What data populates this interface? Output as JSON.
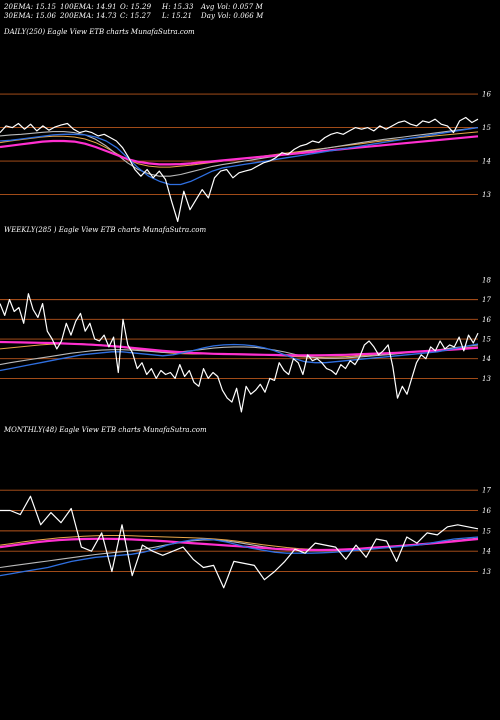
{
  "header": {
    "line1": [
      "20EMA: 15.15",
      "100EMA: 14.91",
      "O: 15.29",
      "H: 15.33",
      "Avg Vol: 0.057  M"
    ],
    "line2": [
      "30EMA: 15.06",
      "200EMA: 14.73",
      "C: 15.27",
      "L: 15.21",
      "Day Vol: 0.066  M"
    ]
  },
  "colors": {
    "background": "#000000",
    "price": "#ffffff",
    "gridline": "#b8561c",
    "ema_blue": "#2f6fe0",
    "ema_magenta": "#ff2fd0",
    "ema_grey": "#b9b9b9",
    "ema_orange": "#e8a64a"
  },
  "chart_data": [
    {
      "type": "line",
      "title": "DAILY(250) Eagle  View  ETB charts MunafaSutra.com",
      "y_ticks": [
        "16",
        "15",
        "14",
        "13"
      ],
      "gridlines": [
        16,
        15,
        14,
        13
      ],
      "ylim": [
        12.6,
        16.3
      ],
      "series": [
        {
          "key": "price",
          "color": "#ffffff",
          "values": [
            14.85,
            15.05,
            15.0,
            15.12,
            14.95,
            15.1,
            14.9,
            15.05,
            14.92,
            15.02,
            15.08,
            15.12,
            14.95,
            14.85,
            14.9,
            14.85,
            14.75,
            14.8,
            14.7,
            14.6,
            14.4,
            14.1,
            13.75,
            13.55,
            13.75,
            13.5,
            13.7,
            13.45,
            12.8,
            12.2,
            13.1,
            12.55,
            12.85,
            13.15,
            12.9,
            13.5,
            13.7,
            13.75,
            13.5,
            13.65,
            13.7,
            13.75,
            13.85,
            13.95,
            14.0,
            14.1,
            14.25,
            14.2,
            14.35,
            14.45,
            14.5,
            14.6,
            14.55,
            14.7,
            14.8,
            14.85,
            14.8,
            14.9,
            15.0,
            14.95,
            15.0,
            14.9,
            15.05,
            14.95,
            15.05,
            15.15,
            15.2,
            15.1,
            15.05,
            15.2,
            15.15,
            15.25,
            15.1,
            15.05,
            14.85,
            15.2,
            15.3,
            15.15,
            15.25
          ]
        },
        {
          "key": "ema_blue",
          "color": "#2f6fe0",
          "values": [
            14.6,
            14.62,
            14.66,
            14.7,
            14.74,
            14.78,
            14.8,
            14.8,
            14.78,
            14.72,
            14.6,
            14.4,
            14.1,
            13.8,
            13.55,
            13.4,
            13.3,
            13.3,
            13.4,
            13.55,
            13.7,
            13.8,
            13.85,
            13.9,
            13.95,
            14.0,
            14.05,
            14.1,
            14.15,
            14.2,
            14.25,
            14.3,
            14.35,
            14.4,
            14.45,
            14.5,
            14.55,
            14.6,
            14.65,
            14.7,
            14.75,
            14.8,
            14.85,
            14.9,
            14.95,
            15.0
          ]
        },
        {
          "key": "ema_grey",
          "color": "#b9b9b9",
          "values": [
            14.75,
            14.78,
            14.8,
            14.83,
            14.86,
            14.88,
            14.88,
            14.85,
            14.78,
            14.65,
            14.45,
            14.2,
            13.95,
            13.75,
            13.62,
            13.55,
            13.55,
            13.6,
            13.68,
            13.76,
            13.84,
            13.9,
            13.95,
            14.0,
            14.05,
            14.1,
            14.15,
            14.2,
            14.25,
            14.3,
            14.35,
            14.4,
            14.45,
            14.5,
            14.55,
            14.6,
            14.64,
            14.68,
            14.72,
            14.76,
            14.8,
            14.84,
            14.88,
            14.92,
            14.96,
            15.0
          ]
        },
        {
          "key": "ema_orange",
          "color": "#e8a64a",
          "values": [
            14.55,
            14.6,
            14.64,
            14.68,
            14.72,
            14.74,
            14.74,
            14.72,
            14.66,
            14.55,
            14.4,
            14.22,
            14.05,
            13.92,
            13.85,
            13.82,
            13.82,
            13.85,
            13.88,
            13.92,
            13.96,
            14.0,
            14.04,
            14.08,
            14.12,
            14.16,
            14.2,
            14.24,
            14.28,
            14.32,
            14.36,
            14.4,
            14.44,
            14.48,
            14.52,
            14.56,
            14.6,
            14.63,
            14.66,
            14.69,
            14.72,
            14.75,
            14.78,
            14.81,
            14.84,
            14.87
          ]
        },
        {
          "key": "ema_magenta",
          "color": "#ff2fd0",
          "values": [
            14.42,
            14.46,
            14.5,
            14.54,
            14.58,
            14.6,
            14.6,
            14.58,
            14.52,
            14.42,
            14.3,
            14.18,
            14.06,
            13.98,
            13.93,
            13.9,
            13.9,
            13.91,
            13.93,
            13.96,
            13.99,
            14.02,
            14.05,
            14.08,
            14.11,
            14.14,
            14.17,
            14.2,
            14.23,
            14.26,
            14.29,
            14.32,
            14.35,
            14.38,
            14.41,
            14.44,
            14.47,
            14.5,
            14.53,
            14.56,
            14.59,
            14.62,
            14.65,
            14.68,
            14.71,
            14.74
          ]
        }
      ]
    },
    {
      "type": "line",
      "title": "WEEKLY(285                   ) Eagle  View  ETB charts MunafaSutra.com",
      "y_ticks": [
        "18",
        "17",
        "16",
        "15",
        "14",
        "13"
      ],
      "gridlines": [
        17,
        16,
        15,
        14,
        13
      ],
      "ylim": [
        11.6,
        18.2
      ],
      "series": [
        {
          "key": "price",
          "color": "#ffffff",
          "values": [
            16.8,
            16.2,
            17.0,
            16.4,
            16.6,
            15.8,
            17.3,
            16.5,
            16.1,
            16.8,
            15.4,
            15.0,
            14.5,
            14.9,
            15.8,
            15.2,
            15.9,
            16.3,
            15.4,
            15.8,
            15.0,
            14.9,
            15.2,
            14.6,
            15.1,
            13.3,
            16.0,
            14.7,
            14.3,
            13.5,
            13.8,
            13.2,
            13.5,
            13.0,
            13.4,
            13.2,
            13.3,
            13.0,
            13.7,
            13.1,
            13.4,
            12.8,
            12.6,
            13.5,
            13.0,
            13.3,
            13.1,
            12.4,
            12.0,
            11.8,
            12.5,
            11.3,
            12.6,
            12.2,
            12.4,
            12.7,
            12.3,
            13.0,
            12.9,
            13.8,
            13.4,
            13.2,
            14.0,
            13.8,
            13.2,
            14.2,
            13.9,
            14.0,
            13.8,
            13.5,
            13.4,
            13.2,
            13.7,
            13.5,
            13.9,
            13.7,
            14.1,
            14.7,
            14.9,
            14.6,
            14.2,
            14.4,
            14.7,
            13.6,
            12.0,
            12.6,
            12.2,
            13.0,
            13.8,
            14.2,
            14.0,
            14.6,
            14.4,
            14.9,
            14.5,
            14.7,
            14.6,
            15.1,
            14.4,
            15.2,
            14.8,
            15.3
          ]
        },
        {
          "key": "ema_blue",
          "color": "#2f6fe0",
          "values": [
            13.4,
            13.5,
            13.6,
            13.7,
            13.8,
            13.9,
            14.0,
            14.1,
            14.2,
            14.25,
            14.3,
            14.35,
            14.35,
            14.3,
            14.25,
            14.2,
            14.15,
            14.2,
            14.3,
            14.42,
            14.55,
            14.65,
            14.7,
            14.72,
            14.7,
            14.65,
            14.55,
            14.4,
            14.2,
            14.0,
            13.85,
            13.8,
            13.8,
            13.85,
            13.9,
            13.95,
            14.0,
            14.05,
            14.1,
            14.15,
            14.2,
            14.25,
            14.3,
            14.35,
            14.45,
            14.55,
            14.65,
            14.75
          ]
        },
        {
          "key": "ema_grey",
          "color": "#b9b9b9",
          "values": [
            13.7,
            13.8,
            13.88,
            13.96,
            14.04,
            14.12,
            14.2,
            14.28,
            14.34,
            14.4,
            14.44,
            14.46,
            14.46,
            14.44,
            14.4,
            14.36,
            14.32,
            14.32,
            14.36,
            14.42,
            14.48,
            14.54,
            14.58,
            14.6,
            14.6,
            14.58,
            14.52,
            14.44,
            14.34,
            14.22,
            14.12,
            14.05,
            14.02,
            14.02,
            14.04,
            14.08,
            14.12,
            14.16,
            14.2,
            14.25,
            14.3,
            14.35,
            14.4,
            14.45,
            14.52,
            14.58,
            14.64,
            14.7
          ]
        },
        {
          "key": "ema_orange",
          "color": "#e8a64a",
          "values": [
            14.5,
            14.55,
            14.6,
            14.65,
            14.7,
            14.73,
            14.75,
            14.76,
            14.76,
            14.74,
            14.7,
            14.64,
            14.58,
            14.5,
            14.44,
            14.38,
            14.32,
            14.28,
            14.25,
            14.24,
            14.24,
            14.24,
            14.25,
            14.25,
            14.24,
            14.22,
            14.2,
            14.17,
            14.14,
            14.11,
            14.09,
            14.08,
            14.08,
            14.09,
            14.11,
            14.14,
            14.17,
            14.21,
            14.25,
            14.29,
            14.33,
            14.37,
            14.41,
            14.45,
            14.49,
            14.53,
            14.57,
            14.6
          ]
        },
        {
          "key": "ema_magenta",
          "color": "#ff2fd0",
          "values": [
            14.85,
            14.84,
            14.83,
            14.82,
            14.81,
            14.8,
            14.78,
            14.76,
            14.74,
            14.71,
            14.68,
            14.64,
            14.6,
            14.55,
            14.5,
            14.45,
            14.4,
            14.36,
            14.32,
            14.29,
            14.27,
            14.25,
            14.24,
            14.23,
            14.22,
            14.21,
            14.2,
            14.19,
            14.18,
            14.17,
            14.17,
            14.17,
            14.18,
            14.19,
            14.2,
            14.22,
            14.24,
            14.26,
            14.28,
            14.3,
            14.33,
            14.36,
            14.39,
            14.42,
            14.45,
            14.48,
            14.52,
            14.56
          ]
        }
      ]
    },
    {
      "type": "line",
      "title": "MONTHLY(48) Eagle  View  ETB charts MunafaSutra.com",
      "y_ticks": [
        "17",
        "16",
        "15",
        "14",
        "13"
      ],
      "gridlines": [
        17,
        16,
        15,
        14,
        13
      ],
      "ylim": [
        11.6,
        17.6
      ],
      "series": [
        {
          "key": "price",
          "color": "#ffffff",
          "values": [
            16.0,
            16.0,
            15.8,
            16.7,
            15.3,
            15.9,
            15.4,
            16.1,
            14.2,
            14.0,
            14.9,
            13.0,
            15.3,
            12.8,
            14.3,
            14.0,
            13.8,
            14.0,
            14.2,
            13.6,
            13.2,
            13.3,
            12.2,
            13.5,
            13.4,
            13.3,
            12.6,
            13.0,
            13.5,
            14.1,
            13.9,
            14.4,
            14.3,
            14.2,
            13.6,
            14.3,
            13.7,
            14.6,
            14.5,
            13.5,
            14.7,
            14.4,
            14.9,
            14.8,
            15.2,
            15.3,
            15.2,
            15.1
          ]
        },
        {
          "key": "ema_blue",
          "color": "#2f6fe0",
          "values": [
            12.8,
            12.9,
            13.0,
            13.1,
            13.2,
            13.35,
            13.5,
            13.6,
            13.7,
            13.75,
            13.8,
            13.85,
            13.95,
            14.1,
            14.3,
            14.45,
            14.55,
            14.6,
            14.55,
            14.45,
            14.3,
            14.15,
            14.05,
            13.95,
            13.9,
            13.9,
            13.9,
            13.92,
            13.95,
            14.0,
            14.05,
            14.1,
            14.15,
            14.2,
            14.25,
            14.3,
            14.4,
            14.5,
            14.6,
            14.65,
            14.7
          ]
        },
        {
          "key": "ema_grey",
          "color": "#b9b9b9",
          "values": [
            13.2,
            13.28,
            13.36,
            13.44,
            13.52,
            13.6,
            13.68,
            13.76,
            13.84,
            13.9,
            13.96,
            14.02,
            14.1,
            14.2,
            14.32,
            14.42,
            14.5,
            14.55,
            14.55,
            14.5,
            14.42,
            14.32,
            14.22,
            14.14,
            14.08,
            14.04,
            14.02,
            14.02,
            14.04,
            14.07,
            14.1,
            14.14,
            14.18,
            14.22,
            14.27,
            14.32,
            14.38,
            14.45,
            14.52,
            14.58,
            14.64
          ]
        },
        {
          "key": "ema_orange",
          "color": "#e8a64a",
          "values": [
            14.3,
            14.38,
            14.46,
            14.54,
            14.6,
            14.66,
            14.7,
            14.74,
            14.76,
            14.77,
            14.77,
            14.76,
            14.74,
            14.72,
            14.7,
            14.68,
            14.66,
            14.64,
            14.6,
            14.55,
            14.48,
            14.4,
            14.32,
            14.25,
            14.18,
            14.13,
            14.1,
            14.08,
            14.08,
            14.09,
            14.11,
            14.14,
            14.18,
            14.22,
            14.26,
            14.31,
            14.36,
            14.42,
            14.48,
            14.54,
            14.6
          ]
        },
        {
          "key": "ema_magenta",
          "color": "#ff2fd0",
          "values": [
            14.2,
            14.28,
            14.36,
            14.44,
            14.5,
            14.55,
            14.58,
            14.6,
            14.61,
            14.61,
            14.6,
            14.58,
            14.55,
            14.52,
            14.48,
            14.44,
            14.4,
            14.36,
            14.32,
            14.28,
            14.24,
            14.2,
            14.16,
            14.12,
            14.09,
            14.07,
            14.06,
            14.06,
            14.07,
            14.09,
            14.12,
            14.16,
            14.2,
            14.24,
            14.28,
            14.33,
            14.38,
            14.43,
            14.48,
            14.54,
            14.6
          ]
        }
      ]
    }
  ]
}
